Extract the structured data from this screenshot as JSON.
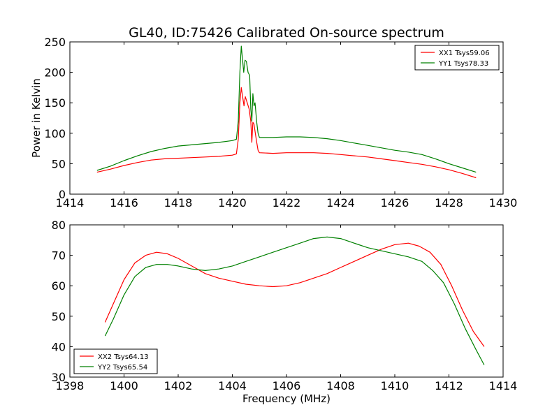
{
  "chart_data": [
    {
      "type": "line",
      "title": "GL40, ID:75426 Calibrated On-source spectrum",
      "xlabel": "",
      "ylabel": "Power in Kelvin",
      "xlim": [
        1414,
        1430
      ],
      "ylim": [
        0,
        250
      ],
      "xticks": [
        1414,
        1416,
        1418,
        1420,
        1422,
        1424,
        1426,
        1428,
        1430
      ],
      "yticks": [
        0,
        50,
        100,
        150,
        200,
        250
      ],
      "grid": false,
      "legend": "top-right",
      "series": [
        {
          "name": "XX1 Tsys59.06",
          "color": "#ff0000",
          "points": [
            [
              1415.0,
              36
            ],
            [
              1415.5,
              41
            ],
            [
              1416.0,
              47
            ],
            [
              1416.5,
              52
            ],
            [
              1417.0,
              56
            ],
            [
              1417.5,
              58
            ],
            [
              1418.0,
              59
            ],
            [
              1418.5,
              60
            ],
            [
              1419.0,
              61
            ],
            [
              1419.5,
              62
            ],
            [
              1420.0,
              64
            ],
            [
              1420.15,
              66
            ],
            [
              1420.22,
              90
            ],
            [
              1420.28,
              150
            ],
            [
              1420.33,
              175
            ],
            [
              1420.38,
              160
            ],
            [
              1420.43,
              145
            ],
            [
              1420.48,
              160
            ],
            [
              1420.55,
              150
            ],
            [
              1420.62,
              140
            ],
            [
              1420.68,
              120
            ],
            [
              1420.72,
              85
            ],
            [
              1420.76,
              118
            ],
            [
              1420.8,
              115
            ],
            [
              1420.85,
              100
            ],
            [
              1420.9,
              85
            ],
            [
              1420.95,
              72
            ],
            [
              1421.0,
              68
            ],
            [
              1421.5,
              67
            ],
            [
              1422.0,
              68
            ],
            [
              1422.5,
              68
            ],
            [
              1423.0,
              68
            ],
            [
              1423.5,
              67
            ],
            [
              1424.0,
              65
            ],
            [
              1424.5,
              63
            ],
            [
              1425.0,
              61
            ],
            [
              1425.5,
              58
            ],
            [
              1426.0,
              55
            ],
            [
              1426.5,
              52
            ],
            [
              1427.0,
              49
            ],
            [
              1427.5,
              45
            ],
            [
              1428.0,
              40
            ],
            [
              1428.5,
              34
            ],
            [
              1429.0,
              27
            ]
          ]
        },
        {
          "name": "YY1 Tsys78.33",
          "color": "#008000",
          "points": [
            [
              1415.0,
              39
            ],
            [
              1415.5,
              46
            ],
            [
              1416.0,
              55
            ],
            [
              1416.5,
              63
            ],
            [
              1417.0,
              70
            ],
            [
              1417.5,
              75
            ],
            [
              1418.0,
              79
            ],
            [
              1418.5,
              81
            ],
            [
              1419.0,
              83
            ],
            [
              1419.5,
              85
            ],
            [
              1420.0,
              88
            ],
            [
              1420.15,
              90
            ],
            [
              1420.22,
              120
            ],
            [
              1420.28,
              200
            ],
            [
              1420.33,
              243
            ],
            [
              1420.38,
              220
            ],
            [
              1420.42,
              200
            ],
            [
              1420.47,
              220
            ],
            [
              1420.52,
              218
            ],
            [
              1420.58,
              200
            ],
            [
              1420.64,
              195
            ],
            [
              1420.68,
              140
            ],
            [
              1420.72,
              120
            ],
            [
              1420.76,
              165
            ],
            [
              1420.8,
              145
            ],
            [
              1420.84,
              150
            ],
            [
              1420.9,
              118
            ],
            [
              1420.95,
              100
            ],
            [
              1421.0,
              93
            ],
            [
              1421.5,
              93
            ],
            [
              1422.0,
              94
            ],
            [
              1422.5,
              94
            ],
            [
              1423.0,
              93
            ],
            [
              1423.5,
              91
            ],
            [
              1424.0,
              88
            ],
            [
              1424.5,
              84
            ],
            [
              1425.0,
              80
            ],
            [
              1425.5,
              76
            ],
            [
              1426.0,
              72
            ],
            [
              1426.5,
              69
            ],
            [
              1427.0,
              65
            ],
            [
              1427.5,
              58
            ],
            [
              1428.0,
              50
            ],
            [
              1428.5,
              43
            ],
            [
              1429.0,
              36
            ]
          ]
        }
      ]
    },
    {
      "type": "line",
      "title": "",
      "xlabel": "Frequency (MHz)",
      "ylabel": "",
      "xlim": [
        1398,
        1414
      ],
      "ylim": [
        30,
        80
      ],
      "xticks": [
        1398,
        1400,
        1402,
        1404,
        1406,
        1408,
        1410,
        1412,
        1414
      ],
      "yticks": [
        30,
        40,
        50,
        60,
        70,
        80
      ],
      "grid": false,
      "legend": "bottom-left",
      "series": [
        {
          "name": "XX2 Tsys64.13",
          "color": "#ff0000",
          "points": [
            [
              1399.3,
              48
            ],
            [
              1399.6,
              54
            ],
            [
              1400.0,
              62
            ],
            [
              1400.4,
              67.5
            ],
            [
              1400.8,
              70
            ],
            [
              1401.2,
              71
            ],
            [
              1401.6,
              70.5
            ],
            [
              1402.0,
              69
            ],
            [
              1402.5,
              66.5
            ],
            [
              1403.0,
              64
            ],
            [
              1403.5,
              62.5
            ],
            [
              1404.0,
              61.5
            ],
            [
              1404.5,
              60.5
            ],
            [
              1405.0,
              60
            ],
            [
              1405.5,
              59.7
            ],
            [
              1406.0,
              60
            ],
            [
              1406.5,
              61
            ],
            [
              1407.0,
              62.5
            ],
            [
              1407.5,
              64
            ],
            [
              1408.0,
              66
            ],
            [
              1408.5,
              68
            ],
            [
              1409.0,
              70
            ],
            [
              1409.5,
              72
            ],
            [
              1410.0,
              73.5
            ],
            [
              1410.5,
              74
            ],
            [
              1410.9,
              73
            ],
            [
              1411.3,
              71
            ],
            [
              1411.7,
              67
            ],
            [
              1412.1,
              60
            ],
            [
              1412.5,
              52
            ],
            [
              1412.9,
              45
            ],
            [
              1413.3,
              40
            ]
          ]
        },
        {
          "name": "YY2 Tsys65.54",
          "color": "#008000",
          "points": [
            [
              1399.3,
              43.5
            ],
            [
              1399.6,
              49
            ],
            [
              1400.0,
              57
            ],
            [
              1400.4,
              63
            ],
            [
              1400.8,
              66
            ],
            [
              1401.2,
              67
            ],
            [
              1401.6,
              67
            ],
            [
              1402.0,
              66.5
            ],
            [
              1402.5,
              65.5
            ],
            [
              1403.0,
              65
            ],
            [
              1403.5,
              65.5
            ],
            [
              1404.0,
              66.5
            ],
            [
              1404.5,
              68
            ],
            [
              1405.0,
              69.5
            ],
            [
              1405.5,
              71
            ],
            [
              1406.0,
              72.5
            ],
            [
              1406.5,
              74
            ],
            [
              1407.0,
              75.5
            ],
            [
              1407.5,
              76
            ],
            [
              1408.0,
              75.5
            ],
            [
              1408.5,
              74
            ],
            [
              1409.0,
              72.5
            ],
            [
              1409.5,
              71.5
            ],
            [
              1410.0,
              70.5
            ],
            [
              1410.5,
              69.5
            ],
            [
              1411.0,
              68
            ],
            [
              1411.4,
              65
            ],
            [
              1411.8,
              61
            ],
            [
              1412.2,
              54
            ],
            [
              1412.6,
              46
            ],
            [
              1413.0,
              39
            ],
            [
              1413.3,
              34
            ]
          ]
        }
      ]
    }
  ]
}
